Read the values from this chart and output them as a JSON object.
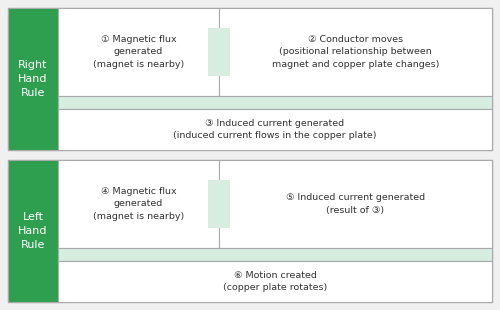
{
  "background_color": "#f0f0f0",
  "green_dark": "#2e9e4f",
  "green_light": "#d6ede0",
  "white": "#ffffff",
  "border_color": "#aaaaaa",
  "right_hand_rule": {
    "label": "Right\nHand\nRule",
    "cell1_title": "① Magnetic flux\ngenerated\n(magnet is nearby)",
    "cell2_title": "② Conductor moves\n(positional relationship between\nmagnet and copper plate changes)",
    "cell3_title": "③ Induced current generated\n(induced current flows in the copper plate)"
  },
  "left_hand_rule": {
    "label": "Left\nHand\nRule",
    "cell4_title": "④ Magnetic flux\ngenerated\n(magnet is nearby)",
    "cell5_title": "⑤ Induced current generated\n(result of ③)",
    "cell6_title": "⑥ Motion created\n(copper plate rotates)"
  }
}
